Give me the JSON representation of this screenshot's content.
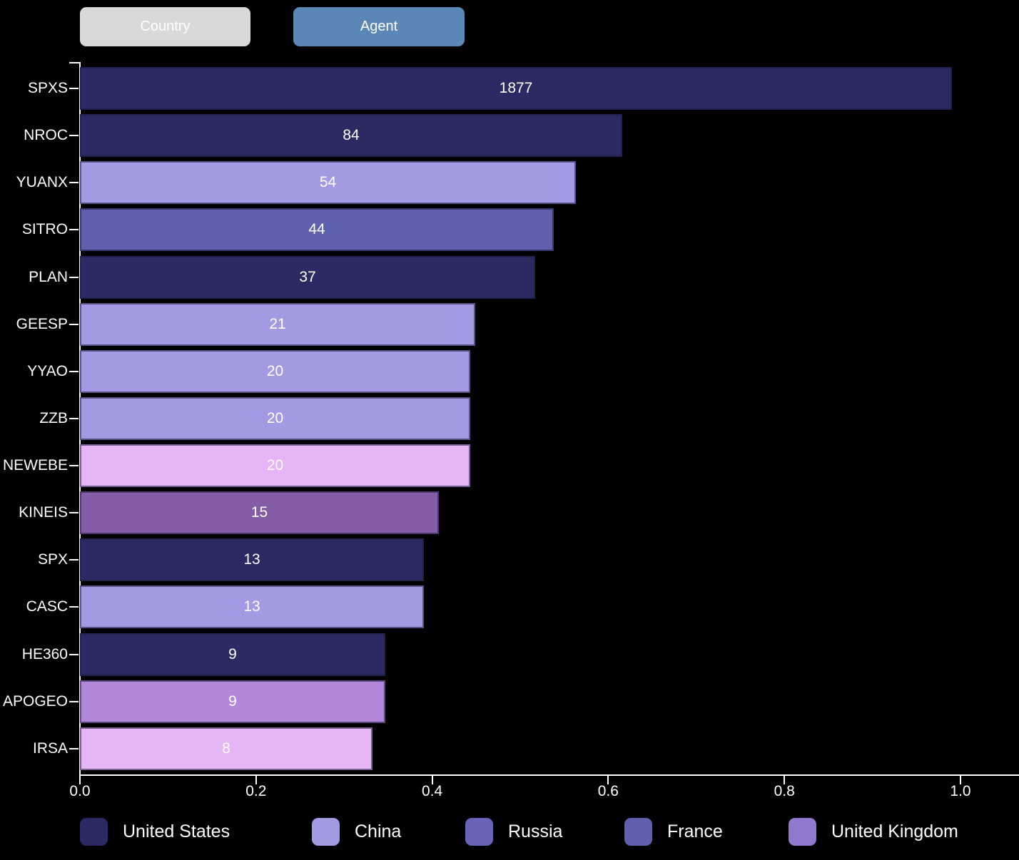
{
  "toolbar": {
    "country_label": "Country",
    "agent_label": "Agent",
    "country_bg": "#d9d9d9",
    "agent_bg": "#5b87b7"
  },
  "colors": {
    "background": "#000000",
    "axis": "#ffffff",
    "text": "#ffffff"
  },
  "chart_data": {
    "type": "bar",
    "orientation": "horizontal",
    "xlim": [
      0.0,
      1.0
    ],
    "x_ticks": [
      "0.0",
      "0.2",
      "0.4",
      "0.6",
      "0.8",
      "1.0"
    ],
    "grid": false,
    "legend_position": "bottom",
    "bars": [
      {
        "label": "SPXS",
        "value": "1877",
        "axis_fraction": 0.99,
        "color": "#2b2a62"
      },
      {
        "label": "NROC",
        "value": "84",
        "axis_fraction": 0.616,
        "color": "#2b2a62"
      },
      {
        "label": "YUANX",
        "value": "54",
        "axis_fraction": 0.563,
        "color": "#a29ae2"
      },
      {
        "label": "SITRO",
        "value": "44",
        "axis_fraction": 0.538,
        "color": "#5f61ae"
      },
      {
        "label": "PLAN",
        "value": "37",
        "axis_fraction": 0.517,
        "color": "#2b2a62"
      },
      {
        "label": "GEESP",
        "value": "21",
        "axis_fraction": 0.449,
        "color": "#a29ae2"
      },
      {
        "label": "YYAO",
        "value": "20",
        "axis_fraction": 0.443,
        "color": "#a29ae2"
      },
      {
        "label": "ZZB",
        "value": "20",
        "axis_fraction": 0.443,
        "color": "#a29ae2"
      },
      {
        "label": "NEWEBE",
        "value": "20",
        "axis_fraction": 0.443,
        "color": "#e5b5f5"
      },
      {
        "label": "KINEIS",
        "value": "15",
        "axis_fraction": 0.408,
        "color": "#855ca6"
      },
      {
        "label": "SPX",
        "value": "13",
        "axis_fraction": 0.391,
        "color": "#2b2a62"
      },
      {
        "label": "CASC",
        "value": "13",
        "axis_fraction": 0.391,
        "color": "#a29ae2"
      },
      {
        "label": "HE360",
        "value": "9",
        "axis_fraction": 0.347,
        "color": "#2b2a62"
      },
      {
        "label": "APOGEO",
        "value": "9",
        "axis_fraction": 0.347,
        "color": "#b286d8"
      },
      {
        "label": "IRSA",
        "value": "8",
        "axis_fraction": 0.332,
        "color": "#e5b5f5"
      }
    ],
    "legend": [
      {
        "label": "United States",
        "color": "#2b2a62"
      },
      {
        "label": "China",
        "color": "#a29ae2"
      },
      {
        "label": "Russia",
        "color": "#6865b8"
      },
      {
        "label": "France",
        "color": "#5f61ae"
      },
      {
        "label": "United Kingdom",
        "color": "#9278cf"
      }
    ]
  }
}
